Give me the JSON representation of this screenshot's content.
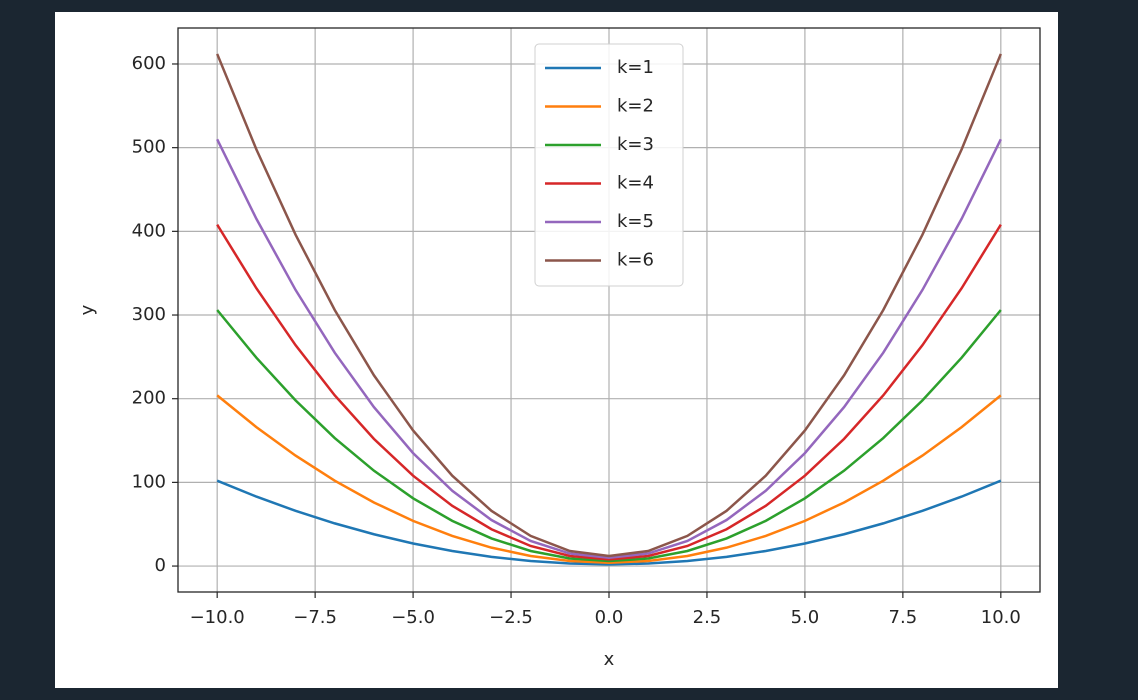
{
  "chart_data": {
    "type": "line",
    "x": [
      -10,
      -9,
      -8,
      -7,
      -6,
      -5,
      -4,
      -3,
      -2,
      -1,
      0,
      1,
      2,
      3,
      4,
      5,
      6,
      7,
      8,
      9,
      10
    ],
    "series": [
      {
        "name": "k=1",
        "color": "#1f77b4",
        "values": [
          102,
          83,
          66,
          51,
          38,
          27,
          18,
          11,
          6,
          3,
          2,
          3,
          6,
          11,
          18,
          27,
          38,
          51,
          66,
          83,
          102
        ]
      },
      {
        "name": "k=2",
        "color": "#ff7f0e",
        "values": [
          204,
          166,
          132,
          102,
          76,
          54,
          36,
          22,
          12,
          6,
          4,
          6,
          12,
          22,
          36,
          54,
          76,
          102,
          132,
          166,
          204
        ]
      },
      {
        "name": "k=3",
        "color": "#2ca02c",
        "values": [
          306,
          249,
          198,
          153,
          114,
          81,
          54,
          33,
          18,
          9,
          6,
          9,
          18,
          33,
          54,
          81,
          114,
          153,
          198,
          249,
          306
        ]
      },
      {
        "name": "k=4",
        "color": "#d62728",
        "values": [
          408,
          332,
          264,
          204,
          152,
          108,
          72,
          44,
          24,
          12,
          8,
          12,
          24,
          44,
          72,
          108,
          152,
          204,
          264,
          332,
          408
        ]
      },
      {
        "name": "k=5",
        "color": "#9467bd",
        "values": [
          510,
          415,
          330,
          255,
          190,
          135,
          90,
          55,
          30,
          15,
          10,
          15,
          30,
          55,
          90,
          135,
          190,
          255,
          330,
          415,
          510
        ]
      },
      {
        "name": "k=6",
        "color": "#8c564b",
        "values": [
          612,
          498,
          396,
          306,
          228,
          162,
          108,
          66,
          36,
          18,
          12,
          18,
          36,
          66,
          108,
          162,
          228,
          306,
          396,
          498,
          612
        ]
      }
    ],
    "x_label": "x",
    "y_label": "y",
    "xlim": [
      -11,
      11
    ],
    "ylim": [
      -31,
      643
    ],
    "xticks": [
      {
        "value": -10,
        "label": "−10.0"
      },
      {
        "value": -7.5,
        "label": "−7.5"
      },
      {
        "value": -5,
        "label": "−5.0"
      },
      {
        "value": -2.5,
        "label": "−2.5"
      },
      {
        "value": 0,
        "label": "0.0"
      },
      {
        "value": 2.5,
        "label": "2.5"
      },
      {
        "value": 5,
        "label": "5.0"
      },
      {
        "value": 7.5,
        "label": "7.5"
      },
      {
        "value": 10,
        "label": "10.0"
      }
    ],
    "yticks": [
      0,
      100,
      200,
      300,
      400,
      500,
      600
    ],
    "grid": true,
    "legend": "upper center"
  }
}
